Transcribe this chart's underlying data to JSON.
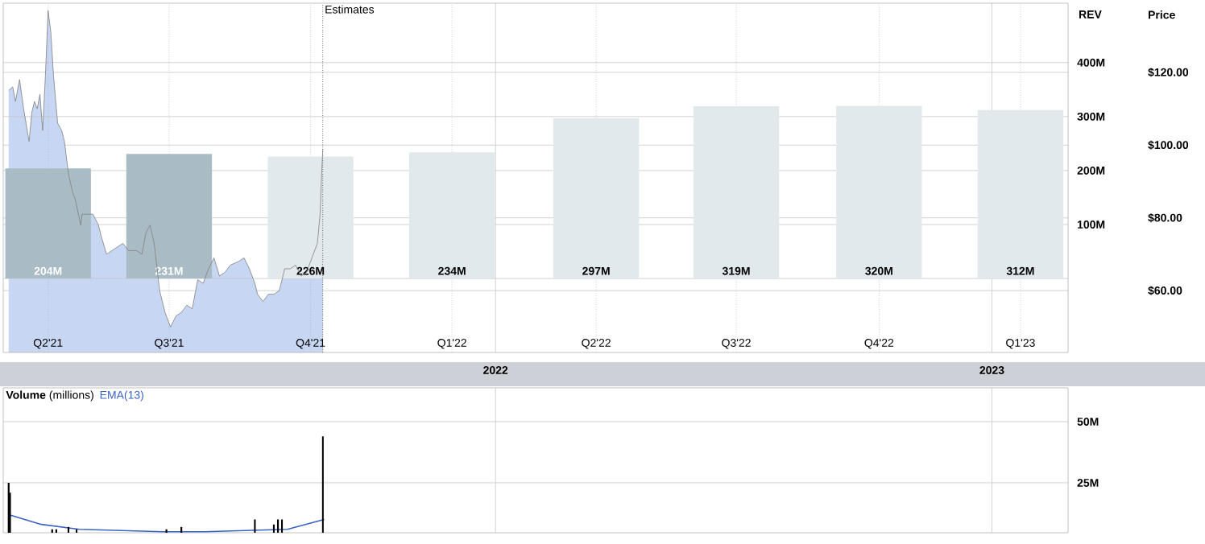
{
  "chart_data": [
    {
      "type": "bar",
      "ylabel": "REV",
      "y2label": "Price",
      "series": [
        {
          "x": [
            "2021-02-06",
            "2021-05-06",
            "2021-08-18",
            "2021-11-30",
            "2022-03-16",
            "2022-06-27",
            "2022-10-10",
            "2023-01-22"
          ],
          "values": [
            204,
            231,
            226,
            234,
            297,
            319,
            320,
            312
          ],
          "colors": [
            "#a9bcc6",
            "#a9bcc6",
            "#e1e9ec",
            "#e1e9ec",
            "#e1e9ec",
            "#e1e9ec",
            "#e1e9ec",
            "#e1e9ec"
          ],
          "value_labels": [
            "204M",
            "231M",
            "226M",
            "234M",
            "297M",
            "319M",
            "320M",
            "312M"
          ]
        },
        {
          "type": "area",
          "axis": "y2",
          "color": "#c6d6f3",
          "x": [
            "2021-01-08",
            "2021-01-11",
            "2021-01-13",
            "2021-01-16",
            "2021-01-19",
            "2021-01-23",
            "2021-01-25",
            "2021-01-27",
            "2021-01-29",
            "2021-01-31",
            "2021-02-02",
            "2021-02-04",
            "2021-02-06",
            "2021-02-08",
            "2021-02-10",
            "2021-02-13",
            "2021-02-16",
            "2021-02-18",
            "2021-02-21",
            "2021-02-24",
            "2021-02-26",
            "2021-03-02",
            "2021-03-03",
            "2021-03-07",
            "2021-03-11",
            "2021-03-15",
            "2021-03-17",
            "2021-03-21",
            "2021-03-25",
            "2021-03-29",
            "2021-04-02",
            "2021-04-06",
            "2021-04-12",
            "2021-04-16",
            "2021-04-19",
            "2021-04-22",
            "2021-04-25",
            "2021-04-29",
            "2021-05-03",
            "2021-05-07",
            "2021-05-11",
            "2021-05-15",
            "2021-05-19",
            "2021-05-23",
            "2021-05-27",
            "2021-05-31",
            "2021-06-04",
            "2021-06-08",
            "2021-06-12",
            "2021-06-16",
            "2021-06-20",
            "2021-06-26",
            "2021-06-30",
            "2021-07-04",
            "2021-07-08",
            "2021-07-10",
            "2021-07-14",
            "2021-07-18",
            "2021-07-22",
            "2021-07-26",
            "2021-07-28",
            "2021-07-30",
            "2021-08-03",
            "2021-08-07",
            "2021-08-11",
            "2021-08-15",
            "2021-08-19",
            "2021-08-23",
            "2021-08-25",
            "2021-08-26",
            "2021-08-27"
          ],
          "values": [
            115,
            116,
            112,
            118,
            110,
            101,
            109,
            112,
            110,
            114,
            104,
            119,
            137,
            131,
            119,
            106,
            104,
            101,
            92,
            87,
            85,
            78,
            81,
            81,
            81,
            78,
            75,
            70,
            71,
            72,
            73,
            71,
            71,
            70,
            76,
            78,
            73,
            60,
            54,
            50,
            53,
            54,
            56,
            55,
            63,
            62,
            66,
            69,
            64,
            65,
            67,
            68,
            69,
            66,
            62,
            59,
            57,
            59,
            59,
            60,
            63,
            66,
            66,
            67,
            64,
            65,
            69,
            73,
            81,
            91,
            99
          ]
        }
      ],
      "xlim": [
        "2021-01-04",
        "2023-02-26"
      ],
      "xticks": [
        {
          "value": "2021-02-06",
          "label": "Q2'21"
        },
        {
          "value": "2021-05-06",
          "label": "Q3'21"
        },
        {
          "value": "2021-08-18",
          "label": "Q4'21"
        },
        {
          "value": "2021-11-30",
          "label": "Q1'22"
        },
        {
          "value": "2022-03-16",
          "label": "Q2'22"
        },
        {
          "value": "2022-06-27",
          "label": "Q3'22"
        },
        {
          "value": "2022-10-10",
          "label": "Q4'22"
        },
        {
          "value": "2023-01-22",
          "label": "Q1'23"
        }
      ],
      "x2lim": [
        "2021-01-04",
        "2023-02-26"
      ],
      "x2ticks": [
        {
          "value": "2022-01-01",
          "label": "2022"
        },
        {
          "value": "2023-01-01",
          "label": "2023"
        }
      ],
      "ylim": [
        -137,
        510
      ],
      "yticks": [
        {
          "value": 0,
          "label": null
        },
        {
          "value": 100,
          "label": "100M"
        },
        {
          "value": 200,
          "label": "200M"
        },
        {
          "value": 300,
          "label": "300M"
        },
        {
          "value": 400,
          "label": "400M"
        }
      ],
      "y2lim": [
        43,
        139
      ],
      "y2ticks": [
        {
          "value": 60,
          "label": "$60.00"
        },
        {
          "value": 80,
          "label": "$80.00"
        },
        {
          "value": 100,
          "label": "$100.00"
        },
        {
          "value": 120,
          "label": "$120.00"
        }
      ],
      "ref_lines": [
        {
          "axis": "x",
          "value": "2021-08-27",
          "label": "Estimates",
          "line_style": "dotted"
        }
      ],
      "grid": true
    },
    {
      "type": "bar",
      "title": "**Volume** (millions)",
      "series": [
        {
          "color": "#000000",
          "x": [
            "2021-01-08",
            "2021-01-09",
            "2021-02-09",
            "2021-02-12",
            "2021-02-21",
            "2021-02-27",
            "2021-05-04",
            "2021-05-15",
            "2021-07-08",
            "2021-07-22",
            "2021-07-25",
            "2021-07-28",
            "2021-08-27"
          ],
          "values": [
            25,
            21,
            6,
            6,
            7,
            6,
            6,
            7,
            10,
            8,
            10,
            10,
            44
          ]
        },
        {
          "type": "line",
          "name": "EMA(13)",
          "color": "#3a62c4",
          "x": [
            "2021-01-08",
            "2021-02-01",
            "2021-03-01",
            "2021-04-01",
            "2021-05-01",
            "2021-06-01",
            "2021-07-01",
            "2021-08-01",
            "2021-08-28"
          ],
          "values": [
            12,
            8,
            6,
            5.5,
            5,
            5,
            5.5,
            6,
            10
          ]
        }
      ],
      "xlim": [
        "2021-01-04",
        "2023-02-26"
      ],
      "xticks": [
        {
          "value": "2022-01-01",
          "label": null
        },
        {
          "value": "2023-01-01",
          "label": null
        }
      ],
      "ylim": [
        4.6,
        63.8
      ],
      "yticks": [
        {
          "value": 25,
          "label": "25M"
        },
        {
          "value": 50,
          "label": "50M"
        }
      ],
      "tick_labels": "y",
      "grid": true,
      "legend": "top left"
    }
  ]
}
